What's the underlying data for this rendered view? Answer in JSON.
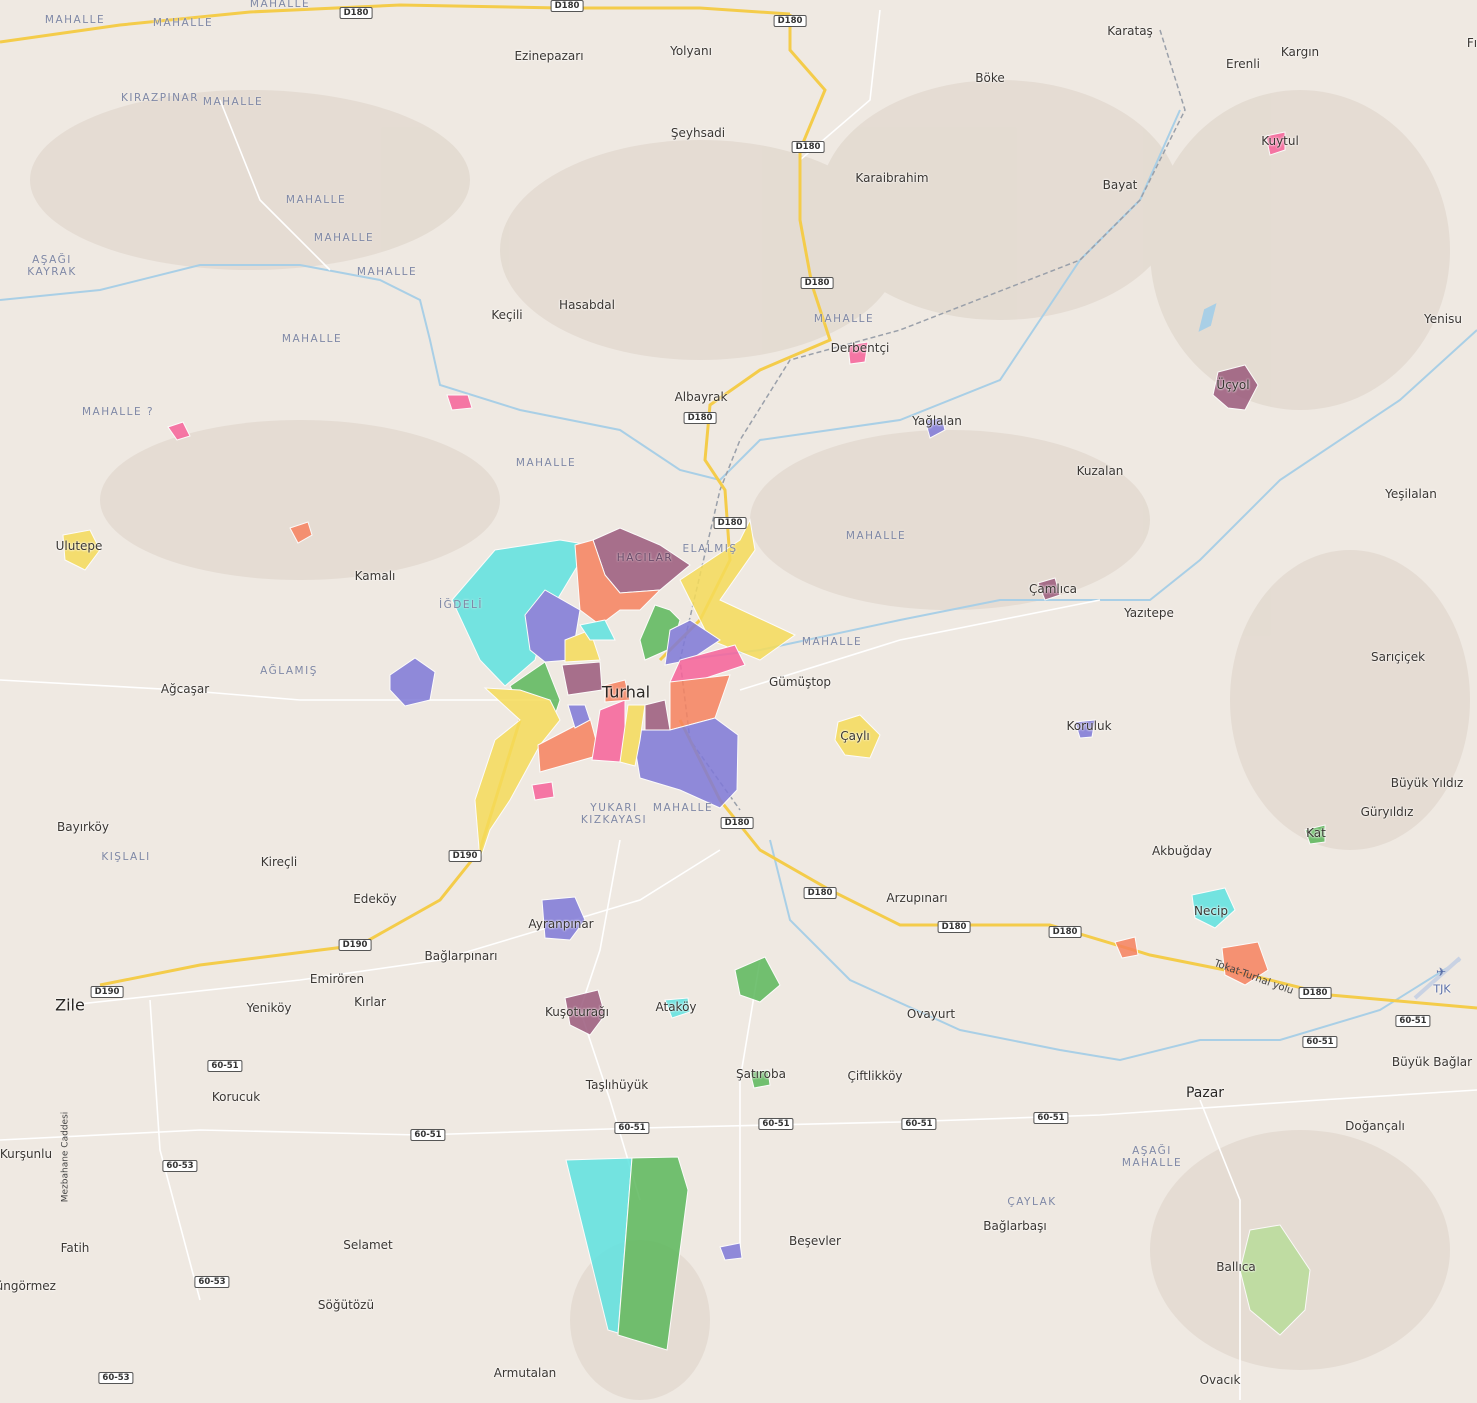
{
  "map": {
    "colors": {
      "land": "#efe9e2",
      "road_major": "#f4cc4a",
      "water": "#a9cfe6",
      "label_place": "#3a3632",
      "label_mahalle": "#7f88a6"
    },
    "places": [
      "Ezinepazarı",
      "Yolyanı",
      "Karataş",
      "Erenli",
      "Kargın",
      "Böke",
      "Şeyhsadi",
      "Kuytul",
      "Karaibrahim",
      "Bayat",
      "Keçili",
      "Hasabdal",
      "Yenisu",
      "Derbentçi",
      "Üçyol",
      "Albayrak",
      "Yağlalan",
      "Kuzalan",
      "Yeşilalan",
      "Ulutepe",
      "Kamalı",
      "Çamlıca",
      "Yazıtepe",
      "Sarıçiçek",
      "Gümüştop",
      "Ağcaşar",
      "Çaylı",
      "Koruluk",
      "Büyük Yıldız",
      "Güryıldız",
      "Bayırköy",
      "Kat",
      "Akbuğday",
      "Kireçli",
      "Edeköy",
      "Arzupınarı",
      "Necip",
      "Ayranpınar",
      "Bağlarpınarı",
      "Emirören",
      "Kırlar",
      "Yeniköy",
      "Kuşoturağı",
      "Ataköy",
      "Ovayurt",
      "Büyük Bağlar",
      "Korucuk",
      "Taşlıhüyük",
      "Şatıroba",
      "Çiftlikköy",
      "Doğançalı",
      "Kurşunlu",
      "Bağlarbaşı",
      "Beşevler",
      "Selamet",
      "Fatih",
      "Ballıca",
      "Süngörmez",
      "Söğütözü",
      "Armutalan",
      "Ovacık",
      "Fı"
    ],
    "towns": [
      "Turhal",
      "Zile",
      "Pazar"
    ],
    "mahalle": [
      "MAHALLE",
      "MAHALLE",
      "MAHALLE",
      "KIRAZPINAR",
      "MAHALLE",
      "MAHALLE",
      "MAHALLE",
      "AŞAĞI\nKAYRAK",
      "MAHALLE",
      "MAHALLE",
      "MAHALLE ?",
      "MAHALLE",
      "MAHALLE",
      "HACILAR",
      "ELALMIŞ",
      "İĞDELİ",
      "MAHALLE",
      "MAHALLE",
      "AĞLAMIŞ",
      "YUKARI\nKIZKAYASI",
      "MAHALLE",
      "KIŞLALI",
      "AŞAĞI\nMAHALLE",
      "ÇAYLAK"
    ],
    "shields": [
      "D180",
      "D180",
      "D180",
      "D180",
      "D180",
      "D180",
      "D180",
      "D180",
      "D180",
      "D180",
      "D180",
      "D180",
      "D190",
      "D190",
      "D190",
      "60-51",
      "60-51",
      "60-51",
      "60-51",
      "60-51",
      "60-51",
      "60-51",
      "60-51",
      "60-53",
      "60-53",
      "60-53"
    ],
    "street_labels": {
      "tokat_turhal": "Tokat-Turhal yolu",
      "mezbahane": "Mezbahane Caddesi"
    },
    "airport": {
      "icon": "airplane-icon",
      "label": "TJK"
    }
  }
}
